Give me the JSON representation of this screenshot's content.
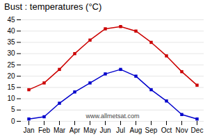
{
  "chart_data": {
    "type": "line",
    "title": "Bust : temperatures (°C)",
    "categories": [
      "Jan",
      "Feb",
      "Mar",
      "Apr",
      "May",
      "Jun",
      "Jul",
      "Aug",
      "Sep",
      "Oct",
      "Nov",
      "Dec"
    ],
    "series": [
      {
        "color": "#cc0000",
        "marker": "square",
        "values": [
          14,
          17,
          23,
          30,
          36,
          41,
          42,
          40,
          35,
          29,
          22,
          16
        ]
      },
      {
        "color": "#0000cc",
        "marker": "square",
        "values": [
          1,
          2,
          8,
          13,
          17,
          21,
          23,
          20,
          14,
          9,
          3,
          1
        ]
      }
    ],
    "ylim": [
      0,
      45
    ],
    "yticks": [
      0,
      5,
      10,
      15,
      20,
      25,
      30,
      35,
      40,
      45
    ],
    "grid": true,
    "annotations": [
      "www.allmetsat.com"
    ]
  }
}
